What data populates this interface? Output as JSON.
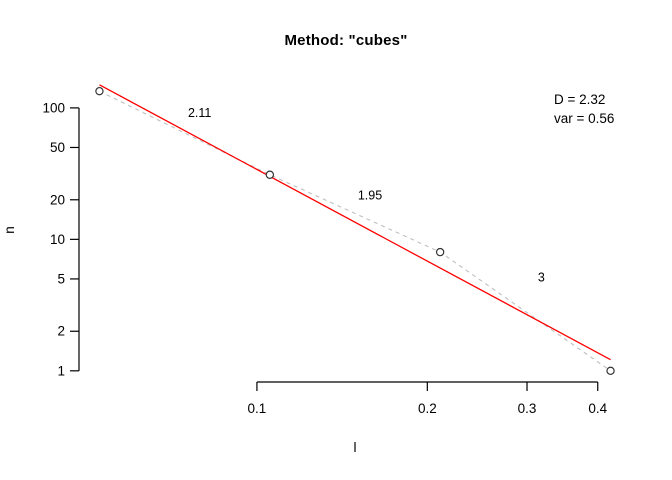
{
  "title": "Method: \"cubes\"",
  "annotation": {
    "line1": "D = 2.32",
    "line2": "var = 0.56"
  },
  "colors": {
    "axis": "#000000",
    "text": "#000000",
    "fit_line": "#ff0000",
    "connector": "#bfbfbf",
    "marker_stroke": "#333333",
    "background": "#ffffff"
  },
  "chart_data": {
    "type": "scatter",
    "title": "Method: \"cubes\"",
    "xlabel": "l",
    "ylabel": "n",
    "x_scale": "log10",
    "y_scale": "log10",
    "points": {
      "l": [
        0.0527,
        0.1054,
        0.2107,
        0.4214
      ],
      "n": [
        134,
        31,
        8,
        1
      ]
    },
    "x_ticks": [
      0.1,
      0.2,
      0.3,
      0.4
    ],
    "y_ticks": [
      1,
      2,
      5,
      10,
      20,
      50,
      100
    ],
    "xlim": [
      0.0527,
      0.4214
    ],
    "ylim": [
      1,
      134
    ],
    "segment_slope_labels": [
      "2.11",
      "1.95",
      "3"
    ],
    "fit": {
      "D": 2.32,
      "var": 0.56,
      "style": "solid"
    },
    "connector_style": "dashed",
    "marker": "open-circle",
    "grid": false,
    "legend": "none"
  }
}
